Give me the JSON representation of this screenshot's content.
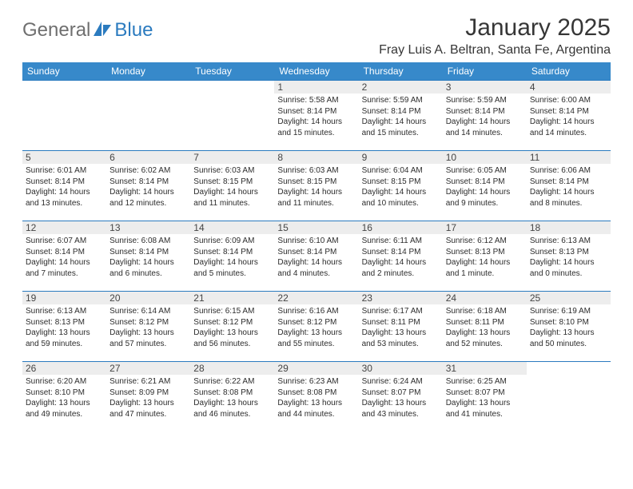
{
  "brand": {
    "part1": "General",
    "part2": "Blue",
    "color_gray": "#6f6f6f",
    "color_blue": "#2b7bbf",
    "icon_fill": "#2b7bbf"
  },
  "title": "January 2025",
  "location": "Fray Luis A. Beltran, Santa Fe, Argentina",
  "header_bg": "#3789ca",
  "header_text_color": "#ffffff",
  "daynum_bg": "#ededed",
  "border_color": "#2b7bbf",
  "weekdays": [
    "Sunday",
    "Monday",
    "Tuesday",
    "Wednesday",
    "Thursday",
    "Friday",
    "Saturday"
  ],
  "weeks": [
    [
      null,
      null,
      null,
      {
        "d": "1",
        "sr": "5:58 AM",
        "ss": "8:14 PM",
        "dl": "14 hours and 15 minutes."
      },
      {
        "d": "2",
        "sr": "5:59 AM",
        "ss": "8:14 PM",
        "dl": "14 hours and 15 minutes."
      },
      {
        "d": "3",
        "sr": "5:59 AM",
        "ss": "8:14 PM",
        "dl": "14 hours and 14 minutes."
      },
      {
        "d": "4",
        "sr": "6:00 AM",
        "ss": "8:14 PM",
        "dl": "14 hours and 14 minutes."
      }
    ],
    [
      {
        "d": "5",
        "sr": "6:01 AM",
        "ss": "8:14 PM",
        "dl": "14 hours and 13 minutes."
      },
      {
        "d": "6",
        "sr": "6:02 AM",
        "ss": "8:14 PM",
        "dl": "14 hours and 12 minutes."
      },
      {
        "d": "7",
        "sr": "6:03 AM",
        "ss": "8:15 PM",
        "dl": "14 hours and 11 minutes."
      },
      {
        "d": "8",
        "sr": "6:03 AM",
        "ss": "8:15 PM",
        "dl": "14 hours and 11 minutes."
      },
      {
        "d": "9",
        "sr": "6:04 AM",
        "ss": "8:15 PM",
        "dl": "14 hours and 10 minutes."
      },
      {
        "d": "10",
        "sr": "6:05 AM",
        "ss": "8:14 PM",
        "dl": "14 hours and 9 minutes."
      },
      {
        "d": "11",
        "sr": "6:06 AM",
        "ss": "8:14 PM",
        "dl": "14 hours and 8 minutes."
      }
    ],
    [
      {
        "d": "12",
        "sr": "6:07 AM",
        "ss": "8:14 PM",
        "dl": "14 hours and 7 minutes."
      },
      {
        "d": "13",
        "sr": "6:08 AM",
        "ss": "8:14 PM",
        "dl": "14 hours and 6 minutes."
      },
      {
        "d": "14",
        "sr": "6:09 AM",
        "ss": "8:14 PM",
        "dl": "14 hours and 5 minutes."
      },
      {
        "d": "15",
        "sr": "6:10 AM",
        "ss": "8:14 PM",
        "dl": "14 hours and 4 minutes."
      },
      {
        "d": "16",
        "sr": "6:11 AM",
        "ss": "8:14 PM",
        "dl": "14 hours and 2 minutes."
      },
      {
        "d": "17",
        "sr": "6:12 AM",
        "ss": "8:13 PM",
        "dl": "14 hours and 1 minute."
      },
      {
        "d": "18",
        "sr": "6:13 AM",
        "ss": "8:13 PM",
        "dl": "14 hours and 0 minutes."
      }
    ],
    [
      {
        "d": "19",
        "sr": "6:13 AM",
        "ss": "8:13 PM",
        "dl": "13 hours and 59 minutes."
      },
      {
        "d": "20",
        "sr": "6:14 AM",
        "ss": "8:12 PM",
        "dl": "13 hours and 57 minutes."
      },
      {
        "d": "21",
        "sr": "6:15 AM",
        "ss": "8:12 PM",
        "dl": "13 hours and 56 minutes."
      },
      {
        "d": "22",
        "sr": "6:16 AM",
        "ss": "8:12 PM",
        "dl": "13 hours and 55 minutes."
      },
      {
        "d": "23",
        "sr": "6:17 AM",
        "ss": "8:11 PM",
        "dl": "13 hours and 53 minutes."
      },
      {
        "d": "24",
        "sr": "6:18 AM",
        "ss": "8:11 PM",
        "dl": "13 hours and 52 minutes."
      },
      {
        "d": "25",
        "sr": "6:19 AM",
        "ss": "8:10 PM",
        "dl": "13 hours and 50 minutes."
      }
    ],
    [
      {
        "d": "26",
        "sr": "6:20 AM",
        "ss": "8:10 PM",
        "dl": "13 hours and 49 minutes."
      },
      {
        "d": "27",
        "sr": "6:21 AM",
        "ss": "8:09 PM",
        "dl": "13 hours and 47 minutes."
      },
      {
        "d": "28",
        "sr": "6:22 AM",
        "ss": "8:08 PM",
        "dl": "13 hours and 46 minutes."
      },
      {
        "d": "29",
        "sr": "6:23 AM",
        "ss": "8:08 PM",
        "dl": "13 hours and 44 minutes."
      },
      {
        "d": "30",
        "sr": "6:24 AM",
        "ss": "8:07 PM",
        "dl": "13 hours and 43 minutes."
      },
      {
        "d": "31",
        "sr": "6:25 AM",
        "ss": "8:07 PM",
        "dl": "13 hours and 41 minutes."
      },
      null
    ]
  ],
  "labels": {
    "sunrise": "Sunrise:",
    "sunset": "Sunset:",
    "daylight": "Daylight:"
  }
}
